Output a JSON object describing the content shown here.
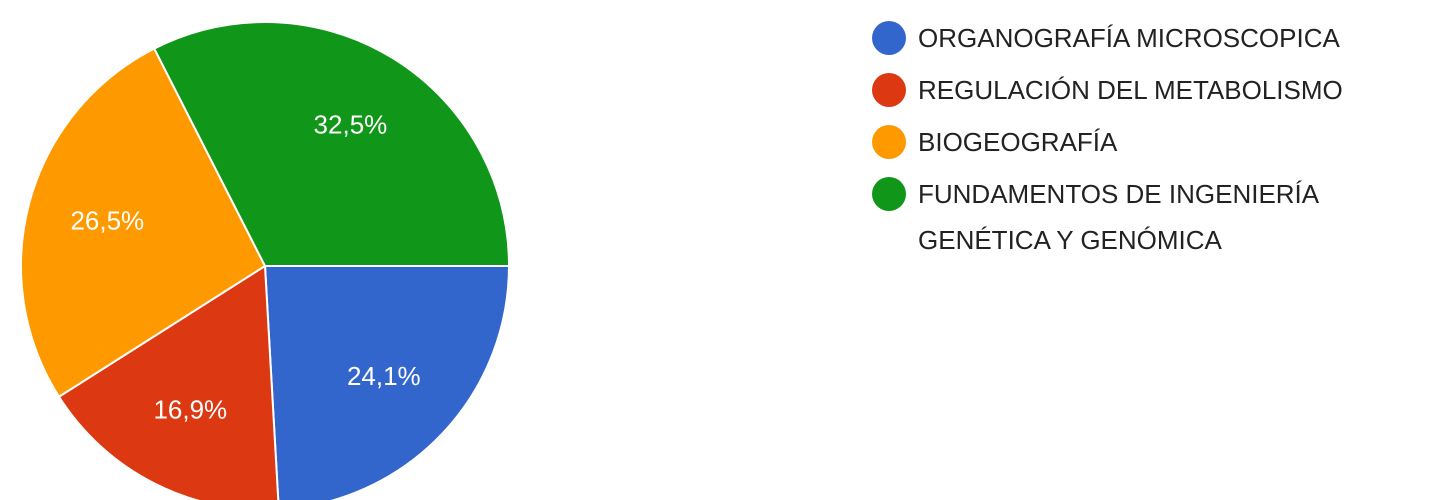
{
  "chart_data": {
    "type": "pie",
    "categories": [
      "ORGANOGRAFÍA MICROSCOPICA",
      "REGULACIÓN DEL METABOLISMO",
      "BIOGEOGRAFÍA",
      "FUNDAMENTOS DE INGENIERÍA GENÉTICA Y GENÓMICA"
    ],
    "values": [
      24.1,
      16.9,
      26.5,
      32.5
    ],
    "value_labels": [
      "24,1%",
      "16,9%",
      "26,5%",
      "32,5%"
    ],
    "colors": [
      "#3366cc",
      "#dc3912",
      "#ff9900",
      "#109618"
    ],
    "legend": "right"
  }
}
